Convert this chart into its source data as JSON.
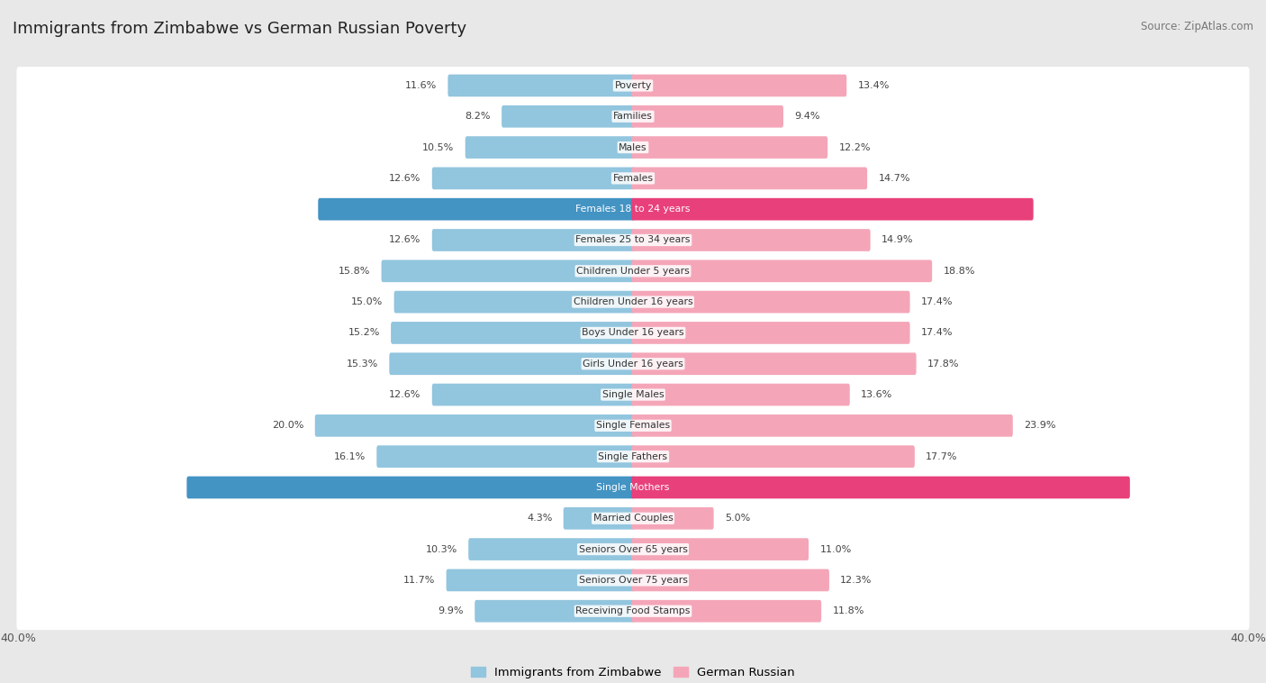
{
  "title": "Immigrants from Zimbabwe vs German Russian Poverty",
  "source": "Source: ZipAtlas.com",
  "categories": [
    "Poverty",
    "Families",
    "Males",
    "Females",
    "Females 18 to 24 years",
    "Females 25 to 34 years",
    "Children Under 5 years",
    "Children Under 16 years",
    "Boys Under 16 years",
    "Girls Under 16 years",
    "Single Males",
    "Single Females",
    "Single Fathers",
    "Single Mothers",
    "Married Couples",
    "Seniors Over 65 years",
    "Seniors Over 75 years",
    "Receiving Food Stamps"
  ],
  "zimbabwe_values": [
    11.6,
    8.2,
    10.5,
    12.6,
    19.8,
    12.6,
    15.8,
    15.0,
    15.2,
    15.3,
    12.6,
    20.0,
    16.1,
    28.1,
    4.3,
    10.3,
    11.7,
    9.9
  ],
  "german_russian_values": [
    13.4,
    9.4,
    12.2,
    14.7,
    25.2,
    14.9,
    18.8,
    17.4,
    17.4,
    17.8,
    13.6,
    23.9,
    17.7,
    31.3,
    5.0,
    11.0,
    12.3,
    11.8
  ],
  "zimbabwe_color": "#92c5de",
  "german_russian_color": "#f4a6b8",
  "zimbabwe_highlight_color": "#4393c3",
  "german_russian_highlight_color": "#e8407a",
  "axis_max": 40.0,
  "legend_label_zimbabwe": "Immigrants from Zimbabwe",
  "legend_label_german_russian": "German Russian",
  "bg_color": "#e8e8e8",
  "row_bg_color": "#ffffff"
}
